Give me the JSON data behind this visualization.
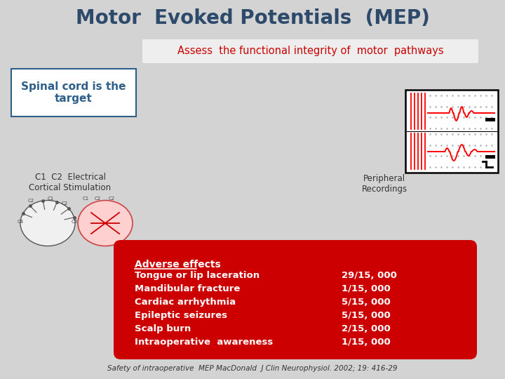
{
  "title": "Motor  Evoked Potentials  (MEP)",
  "title_color": "#2E4A6B",
  "title_fontsize": 20,
  "subtitle": "Assess  the functional integrity of  motor  pathways",
  "subtitle_color": "#CC0000",
  "subtitle_bg": "#EEEEEE",
  "bg_color": "#D3D3D3",
  "box1_text": "Spinal cord is the\ntarget",
  "box1_color": "#2E5F8A",
  "box1_bg": "#FFFFFF",
  "label_c1c2": "C1  C2  Electrical\nCortical Stimulation",
  "label_peripheral": "Peripheral\nRecordings",
  "adverse_title": "Adverse effects",
  "adverse_items": [
    [
      "Tongue or lip laceration",
      "29/15, 000"
    ],
    [
      "Mandibular fracture",
      "1/15, 000"
    ],
    [
      "Cardiac arrhythmia",
      "5/15, 000"
    ],
    [
      "Epileptic seizures",
      "5/15, 000"
    ],
    [
      "Scalp burn",
      "2/15, 000"
    ],
    [
      "Intraoperative  awareness",
      "1/15, 000"
    ]
  ],
  "adverse_bg": "#CC0000",
  "adverse_text_color": "#FFFFFF",
  "footer": "Safety of intraoperative  MEP MacDonald  J Clin Neurophysiol. 2002; 19: 416-29",
  "footer_color": "#333333"
}
